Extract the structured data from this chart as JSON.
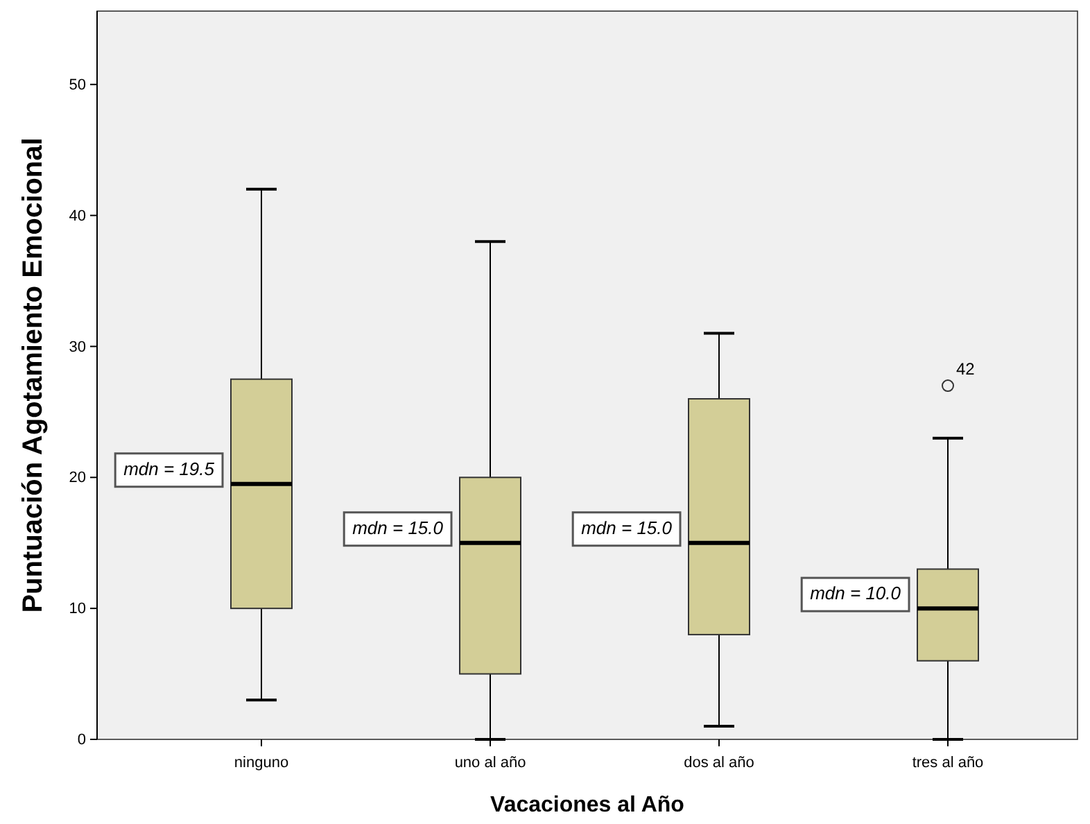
{
  "chart_data": {
    "type": "box",
    "xlabel": "Vacaciones al Año",
    "ylabel": "Puntuación Agotamiento Emocional",
    "categories": [
      "ninguno",
      "uno al año",
      "dos al año",
      "tres al año"
    ],
    "color": "#d3ce97",
    "boxes": [
      {
        "low": 3,
        "q1": 10,
        "median": 19.5,
        "q3": 27.5,
        "high": 42
      },
      {
        "low": 0,
        "q1": 5,
        "median": 15,
        "q3": 20,
        "high": 38
      },
      {
        "low": 1,
        "q1": 8,
        "median": 15,
        "q3": 26,
        "high": 31
      },
      {
        "low": 0,
        "q1": 6,
        "median": 10,
        "q3": 13,
        "high": 23,
        "outliers": [
          27
        ]
      }
    ],
    "ylim": [
      0,
      55.6
    ],
    "yticks": [
      0,
      10,
      20,
      30,
      40,
      50
    ],
    "grid": false,
    "annotations": [
      {
        "text": "mdn = 19.5",
        "x": "ninguno",
        "y": 19.5
      },
      {
        "text": "mdn = 15.0",
        "x": "uno al año",
        "y": 15
      },
      {
        "text": "mdn = 15.0",
        "x": "dos al año",
        "y": 15
      },
      {
        "text": "mdn = 10.0",
        "x": "tres al año",
        "y": 10
      },
      "42"
    ]
  }
}
